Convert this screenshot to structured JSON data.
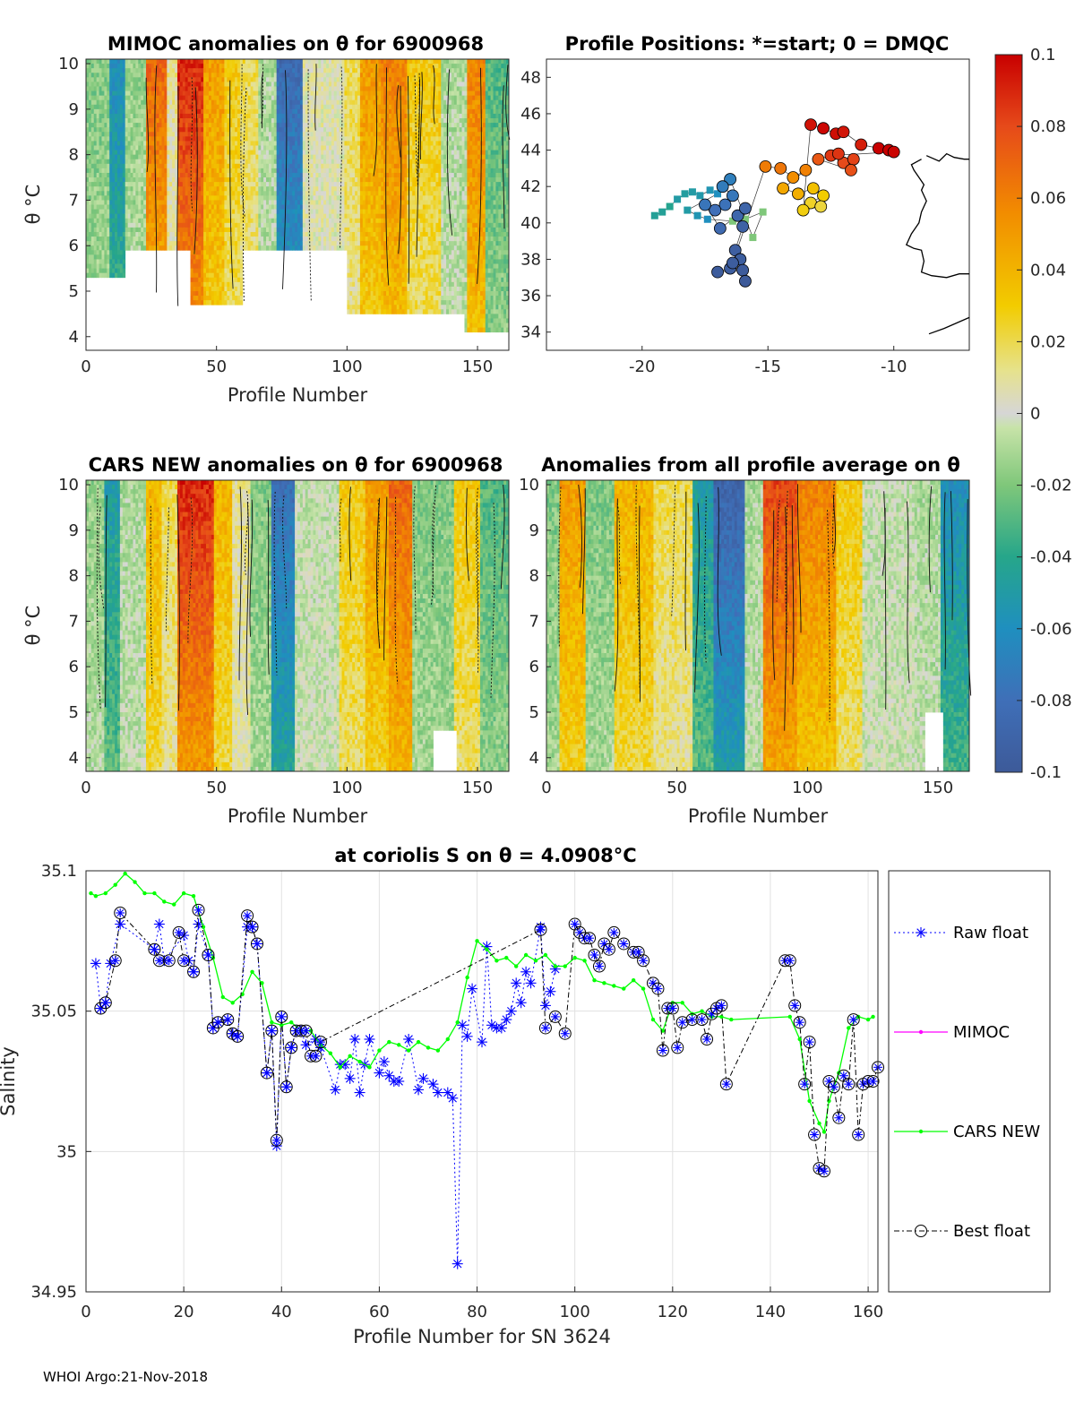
{
  "footer": "WHOI Argo:21-Nov-2018",
  "colorbar": {
    "ticks": [
      "0.1",
      "0.08",
      "0.06",
      "0.04",
      "0.02",
      "0",
      "-0.02",
      "-0.04",
      "-0.06",
      "-0.08",
      "-0.1"
    ],
    "range": [
      -0.1,
      0.1
    ]
  },
  "panels": {
    "mimoc": {
      "title": "MIMOC anomalies on θ  for 6900968",
      "ylabel": "θ °C",
      "xlabel": "Profile Number",
      "xticks": [
        "0",
        "50",
        "100",
        "150"
      ],
      "yticks": [
        "10",
        "9",
        "8",
        "7",
        "6",
        "5",
        "4"
      ],
      "xlim": [
        0,
        162
      ],
      "ylim": [
        3.7,
        10.1
      ]
    },
    "positions": {
      "title": "Profile Positions: *=start; 0 = DMQC",
      "xticks": [
        "-20",
        "-15",
        "-10"
      ],
      "yticks": [
        "48",
        "46",
        "44",
        "42",
        "40",
        "38",
        "36",
        "34"
      ],
      "xlim": [
        -23.8,
        -7.0
      ],
      "ylim": [
        33.0,
        49.0
      ]
    },
    "cars": {
      "title": "CARS NEW anomalies on θ for 6900968",
      "ylabel": "θ °C",
      "xlabel": "Profile Number",
      "xticks": [
        "0",
        "50",
        "100",
        "150"
      ],
      "yticks": [
        "10",
        "9",
        "8",
        "7",
        "6",
        "5",
        "4"
      ]
    },
    "allavg": {
      "title": "Anomalies from all profile average on θ",
      "xlabel": "Profile Number",
      "xticks": [
        "0",
        "50",
        "100",
        "150"
      ],
      "yticks": [
        "10",
        "9",
        "8",
        "7",
        "6",
        "5",
        "4"
      ]
    }
  },
  "chart_data": {
    "type": "line",
    "title": "at coriolis S on θ = 4.0908°C",
    "xlabel": "Profile Number for SN 3624",
    "ylabel": "Salinity",
    "xlim": [
      0,
      162
    ],
    "ylim": [
      34.95,
      35.1
    ],
    "grid": true,
    "legend_position": "right",
    "xticks": [
      "0",
      "20",
      "40",
      "60",
      "80",
      "100",
      "120",
      "140",
      "160"
    ],
    "yticks": [
      "35.1",
      "35.05",
      "35",
      "34.95"
    ],
    "series": [
      {
        "name": "Raw float",
        "color": "#0000ff",
        "points": [
          [
            2,
            35.067
          ],
          [
            3,
            35.051
          ],
          [
            4,
            35.053
          ],
          [
            5,
            35.067
          ],
          [
            7,
            35.081
          ],
          [
            14,
            35.072
          ],
          [
            15,
            35.081
          ],
          [
            16,
            35.068
          ],
          [
            20,
            35.077
          ],
          [
            21,
            35.068
          ],
          [
            22,
            35.064
          ],
          [
            23,
            35.081
          ],
          [
            25,
            35.07
          ],
          [
            26,
            35.044
          ],
          [
            27,
            35.046
          ],
          [
            29,
            35.047
          ],
          [
            30,
            35.042
          ],
          [
            31,
            35.041
          ],
          [
            33,
            35.08
          ],
          [
            34,
            35.08
          ],
          [
            35,
            35.074
          ],
          [
            37,
            35.028
          ],
          [
            38,
            35.043
          ],
          [
            39,
            35.002
          ],
          [
            40,
            35.048
          ],
          [
            41,
            35.023
          ],
          [
            42,
            35.037
          ],
          [
            43,
            35.043
          ],
          [
            44,
            35.043
          ],
          [
            45,
            35.038
          ],
          [
            47,
            35.04
          ],
          [
            48,
            35.037
          ],
          [
            51,
            35.022
          ],
          [
            52,
            35.031
          ],
          [
            53,
            35.031
          ],
          [
            54,
            35.026
          ],
          [
            55,
            35.04
          ],
          [
            56,
            35.021
          ],
          [
            57,
            35.031
          ],
          [
            58,
            35.04
          ],
          [
            60,
            35.028
          ],
          [
            61,
            35.032
          ],
          [
            62,
            35.027
          ],
          [
            63,
            35.025
          ],
          [
            64,
            35.025
          ],
          [
            66,
            35.04
          ],
          [
            68,
            35.022
          ],
          [
            69,
            35.026
          ],
          [
            71,
            35.024
          ],
          [
            72,
            35.021
          ],
          [
            74,
            35.021
          ],
          [
            75,
            35.019
          ],
          [
            76,
            34.96
          ],
          [
            77,
            35.045
          ],
          [
            78,
            35.041
          ],
          [
            79,
            35.058
          ],
          [
            81,
            35.039
          ],
          [
            82,
            35.073
          ],
          [
            83,
            35.045
          ],
          [
            84,
            35.044
          ],
          [
            85,
            35.044
          ],
          [
            86,
            35.047
          ],
          [
            87,
            35.05
          ],
          [
            88,
            35.06
          ],
          [
            89,
            35.053
          ],
          [
            90,
            35.064
          ],
          [
            91,
            35.06
          ],
          [
            93,
            35.08
          ],
          [
            94,
            35.052
          ],
          [
            95,
            35.057
          ],
          [
            96,
            35.065
          ]
        ]
      },
      {
        "name": "MIMOC",
        "color": "#ff00ff",
        "points": []
      },
      {
        "name": "CARS NEW",
        "color": "#00ff00",
        "points": [
          [
            1,
            35.092
          ],
          [
            2,
            35.091
          ],
          [
            4,
            35.092
          ],
          [
            6,
            35.095
          ],
          [
            8,
            35.099
          ],
          [
            10,
            35.096
          ],
          [
            12,
            35.092
          ],
          [
            14,
            35.092
          ],
          [
            16,
            35.089
          ],
          [
            18,
            35.088
          ],
          [
            20,
            35.092
          ],
          [
            22,
            35.091
          ],
          [
            24,
            35.08
          ],
          [
            26,
            35.069
          ],
          [
            28,
            35.055
          ],
          [
            30,
            35.053
          ],
          [
            32,
            35.056
          ],
          [
            34,
            35.064
          ],
          [
            36,
            35.06
          ],
          [
            38,
            35.046
          ],
          [
            40,
            35.045
          ],
          [
            42,
            35.046
          ],
          [
            44,
            35.043
          ],
          [
            46,
            35.043
          ],
          [
            48,
            35.038
          ],
          [
            50,
            35.035
          ],
          [
            52,
            35.03
          ],
          [
            54,
            35.034
          ],
          [
            56,
            35.032
          ],
          [
            58,
            35.03
          ],
          [
            60,
            35.036
          ],
          [
            62,
            35.039
          ],
          [
            64,
            35.038
          ],
          [
            66,
            35.036
          ],
          [
            68,
            35.039
          ],
          [
            70,
            35.037
          ],
          [
            72,
            35.036
          ],
          [
            74,
            35.04
          ],
          [
            76,
            35.046
          ],
          [
            78,
            35.062
          ],
          [
            80,
            35.075
          ],
          [
            82,
            35.072
          ],
          [
            84,
            35.068
          ],
          [
            86,
            35.069
          ],
          [
            88,
            35.066
          ],
          [
            90,
            35.07
          ],
          [
            92,
            35.068
          ],
          [
            94,
            35.07
          ],
          [
            96,
            35.066
          ],
          [
            98,
            35.066
          ],
          [
            100,
            35.069
          ],
          [
            102,
            35.068
          ],
          [
            104,
            35.061
          ],
          [
            106,
            35.06
          ],
          [
            108,
            35.059
          ],
          [
            110,
            35.058
          ],
          [
            112,
            35.061
          ],
          [
            114,
            35.058
          ],
          [
            116,
            35.047
          ],
          [
            118,
            35.043
          ],
          [
            120,
            35.053
          ],
          [
            122,
            35.053
          ],
          [
            124,
            35.049
          ],
          [
            126,
            35.05
          ],
          [
            128,
            35.048
          ],
          [
            130,
            35.048
          ],
          [
            132,
            35.047
          ],
          [
            144,
            35.048
          ],
          [
            146,
            35.04
          ],
          [
            148,
            35.018
          ],
          [
            150,
            35.01
          ],
          [
            151,
            35.007
          ],
          [
            152,
            35.018
          ],
          [
            154,
            35.028
          ],
          [
            156,
            35.044
          ],
          [
            158,
            35.048
          ],
          [
            160,
            35.047
          ],
          [
            161,
            35.048
          ]
        ]
      },
      {
        "name": "Best float",
        "color": "#000000",
        "points": [
          [
            3,
            35.051
          ],
          [
            4,
            35.053
          ],
          [
            6,
            35.068
          ],
          [
            7,
            35.085
          ],
          [
            14,
            35.072
          ],
          [
            15,
            35.068
          ],
          [
            17,
            35.068
          ],
          [
            19,
            35.078
          ],
          [
            20,
            35.068
          ],
          [
            22,
            35.064
          ],
          [
            23,
            35.086
          ],
          [
            25,
            35.07
          ],
          [
            26,
            35.044
          ],
          [
            27,
            35.046
          ],
          [
            29,
            35.047
          ],
          [
            30,
            35.042
          ],
          [
            31,
            35.041
          ],
          [
            33,
            35.084
          ],
          [
            34,
            35.08
          ],
          [
            35,
            35.074
          ],
          [
            37,
            35.028
          ],
          [
            38,
            35.043
          ],
          [
            39,
            35.004
          ],
          [
            40,
            35.048
          ],
          [
            41,
            35.023
          ],
          [
            42,
            35.037
          ],
          [
            43,
            35.043
          ],
          [
            44,
            35.043
          ],
          [
            45,
            35.043
          ],
          [
            46,
            35.034
          ],
          [
            47,
            35.034
          ],
          [
            48,
            35.039
          ],
          [
            93,
            35.079
          ],
          [
            94,
            35.044
          ],
          [
            96,
            35.048
          ],
          [
            98,
            35.042
          ],
          [
            100,
            35.081
          ],
          [
            101,
            35.078
          ],
          [
            102,
            35.076
          ],
          [
            103,
            35.076
          ],
          [
            104,
            35.07
          ],
          [
            105,
            35.066
          ],
          [
            106,
            35.074
          ],
          [
            107,
            35.072
          ],
          [
            108,
            35.078
          ],
          [
            110,
            35.074
          ],
          [
            112,
            35.071
          ],
          [
            113,
            35.071
          ],
          [
            114,
            35.068
          ],
          [
            116,
            35.06
          ],
          [
            117,
            35.058
          ],
          [
            118,
            35.036
          ],
          [
            119,
            35.051
          ],
          [
            120,
            35.051
          ],
          [
            121,
            35.037
          ],
          [
            122,
            35.046
          ],
          [
            124,
            35.047
          ],
          [
            126,
            35.047
          ],
          [
            127,
            35.04
          ],
          [
            128,
            35.049
          ],
          [
            129,
            35.051
          ],
          [
            130,
            35.052
          ],
          [
            131,
            35.024
          ],
          [
            143,
            35.068
          ],
          [
            144,
            35.068
          ],
          [
            145,
            35.052
          ],
          [
            146,
            35.046
          ],
          [
            147,
            35.024
          ],
          [
            148,
            35.039
          ],
          [
            149,
            35.006
          ],
          [
            150,
            34.994
          ],
          [
            151,
            34.993
          ],
          [
            152,
            35.025
          ],
          [
            153,
            35.023
          ],
          [
            154,
            35.012
          ],
          [
            155,
            35.027
          ],
          [
            156,
            35.024
          ],
          [
            157,
            35.047
          ],
          [
            158,
            35.006
          ],
          [
            159,
            35.024
          ],
          [
            160,
            35.025
          ],
          [
            161,
            35.025
          ],
          [
            162,
            35.03
          ]
        ]
      }
    ]
  }
}
